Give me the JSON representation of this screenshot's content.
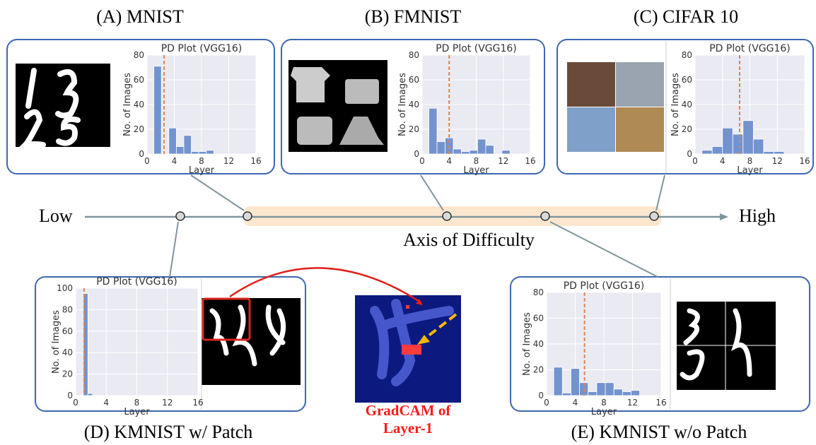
{
  "chart_data": [
    {
      "type": "histogram",
      "title": "PD Plot (VGG16)",
      "x_label": "Layer",
      "y_label": "No. of Images",
      "bins": [
        1,
        2.1,
        3.2,
        4.3,
        5.4,
        6.5,
        7.6,
        8.7,
        9.8
      ],
      "values": [
        71,
        0,
        21,
        6,
        15,
        2,
        2,
        3
      ],
      "mean_line": 2.5,
      "color": "#7393cf",
      "line_color": "#dd8452",
      "xlim": [
        0,
        16
      ],
      "xticks": [
        0,
        4,
        8,
        12,
        16
      ],
      "ylim": [
        0,
        80
      ],
      "yticks": [
        0,
        20,
        40,
        60,
        80
      ],
      "grid": true
    },
    {
      "type": "histogram",
      "title": "PD Plot (VGG16)",
      "x_label": "Layer",
      "y_label": "No. of Images",
      "bins": [
        1,
        2.2,
        3.4,
        4.6,
        5.8,
        7,
        8.2,
        9.4,
        10.6,
        11.8,
        13
      ],
      "values": [
        37,
        10,
        13,
        4,
        2,
        3,
        12,
        7,
        0,
        3
      ],
      "mean_line": 4,
      "color": "#7393cf",
      "line_color": "#dd8452",
      "xlim": [
        0,
        16
      ],
      "xticks": [
        0,
        4,
        8,
        12,
        16
      ],
      "ylim": [
        0,
        80
      ],
      "yticks": [
        0,
        20,
        40,
        60,
        80
      ],
      "grid": true
    },
    {
      "type": "histogram",
      "title": "PD Plot (VGG16)",
      "x_label": "Layer",
      "y_label": "No. of Images",
      "bins": [
        1,
        2.5,
        4,
        5.5,
        7,
        8.5,
        10,
        11.5,
        13
      ],
      "values": [
        3,
        6,
        21,
        16,
        27,
        12,
        2,
        2
      ],
      "mean_line": 6.5,
      "color": "#7393cf",
      "line_color": "#dd8452",
      "xlim": [
        0,
        16
      ],
      "xticks": [
        0,
        4,
        8,
        12,
        16
      ],
      "ylim": [
        0,
        80
      ],
      "yticks": [
        0,
        20,
        40,
        60,
        80
      ],
      "grid": true
    },
    {
      "type": "histogram",
      "title": "PD Plot (VGG16)",
      "x_label": "Layer",
      "y_label": "No. of Images",
      "bins": [
        1,
        1.6,
        2.2
      ],
      "values": [
        95,
        2
      ],
      "mean_line": 1.1,
      "color": "#7393cf",
      "line_color": "#dd8452",
      "xlim": [
        0,
        16
      ],
      "xticks": [
        0,
        4,
        8,
        12,
        16
      ],
      "ylim": [
        0,
        100
      ],
      "yticks": [
        0,
        20,
        40,
        60,
        80,
        100
      ],
      "grid": true
    },
    {
      "type": "histogram",
      "title": "PD Plot (VGG16)",
      "x_label": "Layer",
      "y_label": "No. of Images",
      "bins": [
        1,
        2.2,
        3.4,
        4.6,
        5.8,
        7,
        8.2,
        9.4,
        10.6,
        11.8,
        13
      ],
      "values": [
        22,
        2,
        21,
        10,
        3,
        10,
        10,
        5,
        3,
        4
      ],
      "mean_line": 5.3,
      "color": "#7393cf",
      "line_color": "#dd8452",
      "xlim": [
        0,
        16
      ],
      "xticks": [
        0,
        4,
        8,
        12,
        16
      ],
      "ylim": [
        0,
        80
      ],
      "yticks": [
        0,
        20,
        40,
        60,
        80
      ],
      "grid": true
    }
  ],
  "panels": [
    "(A) MNIST",
    "(B) FMNIST",
    "(C) CIFAR 10",
    "(D) KMNIST w/ Patch",
    "(E) KMNIST w/o Patch"
  ],
  "axis": {
    "low": "Low",
    "high": "High",
    "title": "Axis of Difficulty"
  },
  "gradcam": {
    "line1": "GradCAM of",
    "line2": "Layer-1"
  }
}
